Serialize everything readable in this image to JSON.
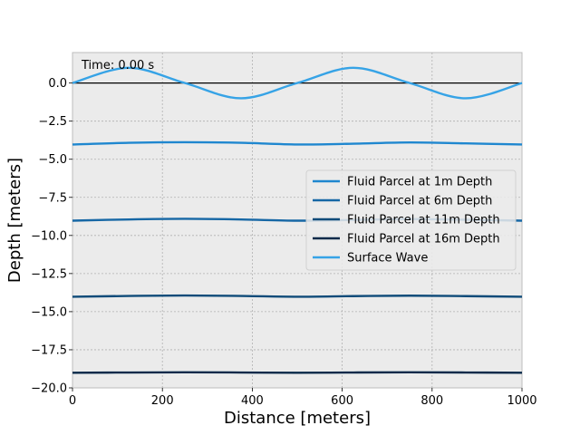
{
  "chart_data": {
    "type": "line",
    "title": "",
    "xlabel": "Distance [meters]",
    "ylabel": "Depth [meters]",
    "xlim": [
      0,
      1000
    ],
    "ylim": [
      -20,
      2
    ],
    "xticks": [
      0,
      200,
      400,
      600,
      800,
      1000
    ],
    "xtick_labels": [
      "0",
      "200",
      "400",
      "600",
      "800",
      "1000"
    ],
    "yticks": [
      0.0,
      -2.5,
      -5.0,
      -7.5,
      -10.0,
      -12.5,
      -15.0,
      -17.5,
      -20.0
    ],
    "ytick_labels": [
      "0.0",
      "−2.5",
      "−5.0",
      "−7.5",
      "−10.0",
      "−12.5",
      "−15.0",
      "−17.5",
      "−20.0"
    ],
    "grid": true,
    "legend_position": "center-right",
    "annotation": "Time: 0.00 s",
    "reference_line": {
      "y": 0,
      "color": "#000000"
    },
    "series": [
      {
        "name": "Fluid Parcel at 1m Depth",
        "color": "#1f87cf",
        "x": [
          0,
          125,
          250,
          375,
          500,
          625,
          750,
          875,
          1000
        ],
        "y": [
          -4.03,
          -3.92,
          -3.88,
          -3.92,
          -4.03,
          -3.98,
          -3.9,
          -3.96,
          -4.03
        ]
      },
      {
        "name": "Fluid Parcel at 6m Depth",
        "color": "#1667a5",
        "x": [
          0,
          125,
          250,
          375,
          500,
          625,
          750,
          875,
          1000
        ],
        "y": [
          -9.03,
          -8.95,
          -8.91,
          -8.95,
          -9.03,
          -8.98,
          -8.92,
          -8.97,
          -9.03
        ]
      },
      {
        "name": "Fluid Parcel at 11m Depth",
        "color": "#0f4b79",
        "x": [
          0,
          125,
          250,
          375,
          500,
          625,
          750,
          875,
          1000
        ],
        "y": [
          -14.02,
          -13.97,
          -13.94,
          -13.97,
          -14.02,
          -13.98,
          -13.95,
          -13.98,
          -14.02
        ]
      },
      {
        "name": "Fluid Parcel at 16m Depth",
        "color": "#0a2a4a",
        "x": [
          0,
          125,
          250,
          375,
          500,
          625,
          750,
          875,
          1000
        ],
        "y": [
          -19.01,
          -18.99,
          -18.98,
          -18.99,
          -19.01,
          -18.99,
          -18.98,
          -18.99,
          -19.01
        ]
      },
      {
        "name": "Surface Wave",
        "color": "#36a3e6",
        "x": [
          0,
          125,
          250,
          375,
          500,
          625,
          750,
          875,
          1000
        ],
        "y": [
          0.0,
          1.0,
          0.0,
          -1.0,
          0.0,
          1.0,
          0.0,
          -1.0,
          0.0
        ]
      }
    ]
  }
}
